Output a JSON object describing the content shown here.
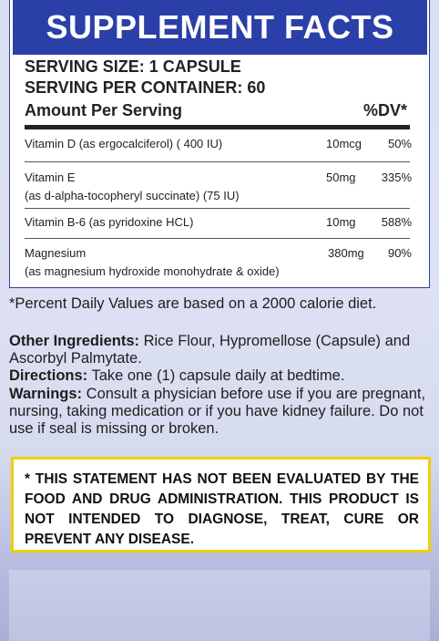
{
  "title": "SUPPLEMENT FACTS",
  "serving_size": "SERVING SIZE: 1 CAPSULE",
  "servings_per_container": "SERVING PER CONTAINER: 60",
  "amount_header": "Amount Per Serving",
  "dv_header": "%DV*",
  "nutrients": [
    {
      "name": "Vitamin D (as ergocalciferol) ( 400 IU)",
      "detail": "",
      "amount": "10mcg",
      "dv": "50%"
    },
    {
      "name": "Vitamin E",
      "detail": "(as d-alpha-tocopheryl succinate) (75 IU)",
      "amount": "50mg",
      "dv": "335%"
    },
    {
      "name": "Vitamin B-6 (as pyridoxine HCL)",
      "detail": "",
      "amount": "10mg",
      "dv": "588%"
    },
    {
      "name": "Magnesium",
      "detail": "(as magnesium hydroxide monohydrate & oxide)",
      "amount": "380mg",
      "dv": "90%"
    }
  ],
  "dv_note": "*Percent Daily Values are based on a 2000 calorie diet.",
  "other_ingredients": {
    "label": "Other Ingredients:",
    "text": " Rice Flour,  Hypromellose (Capsule) and Ascorbyl Palmytate."
  },
  "directions": {
    "label": "Directions:",
    "text": " Take one (1) capsule daily at bedtime."
  },
  "warnings": {
    "label": "Warnings:",
    "text": " Consult a physician before use if you are pregnant, nursing, taking medication or if you have kidney failure. Do not use if seal is missing or broken."
  },
  "disclaimer": "* THIS STATEMENT HAS NOT BEEN EVALUATED BY THE FOOD AND DRUG ADMINISTRATION. THIS PRODUCT IS NOT INTENDED TO DIAGNOSE, TREAT, CURE OR PREVENT ANY DISEASE."
}
